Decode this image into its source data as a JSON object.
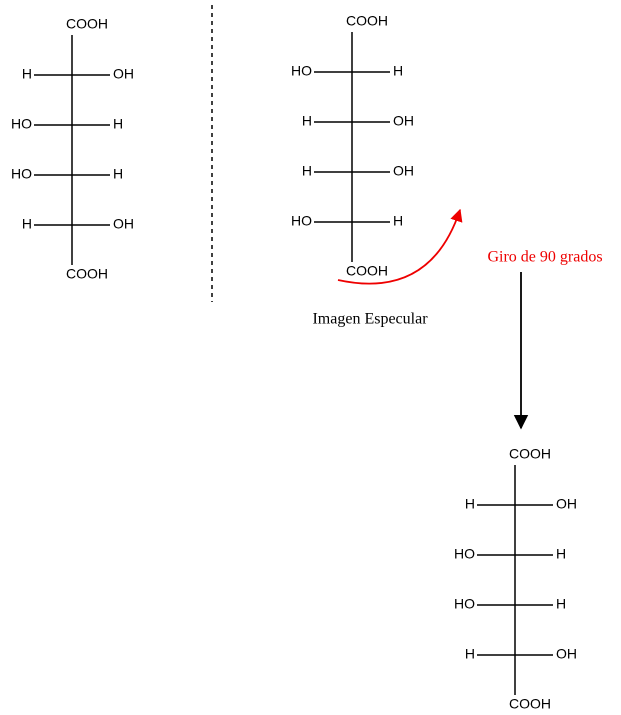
{
  "structures": [
    {
      "top": "COOH",
      "rows": [
        [
          "H",
          "OH"
        ],
        [
          "HO",
          "H"
        ],
        [
          "HO",
          "H"
        ],
        [
          "H",
          "OH"
        ]
      ],
      "bottom": "COOH"
    },
    {
      "top": "COOH",
      "rows": [
        [
          "HO",
          "H"
        ],
        [
          "H",
          "OH"
        ],
        [
          "H",
          "OH"
        ],
        [
          "HO",
          "H"
        ]
      ],
      "bottom": "COOH"
    },
    {
      "top": "COOH",
      "rows": [
        [
          "H",
          "OH"
        ],
        [
          "HO",
          "H"
        ],
        [
          "HO",
          "H"
        ],
        [
          "H",
          "OH"
        ]
      ],
      "bottom": "COOH"
    }
  ],
  "mirror_label": "Imagen Especular",
  "rotation_label": "Giro de 90 grados"
}
